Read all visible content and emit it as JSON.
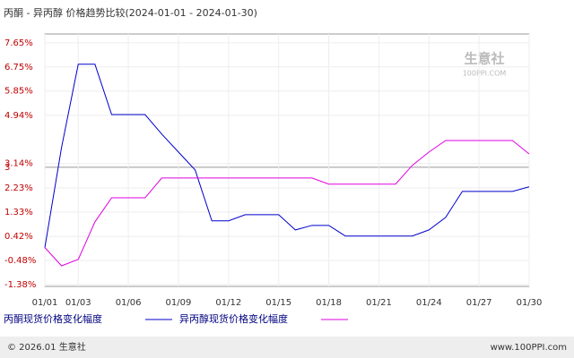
{
  "chart_data": {
    "type": "line",
    "title": "丙酮 - 异丙醇 价格趋势比较(2024-01-01 - 2024-01-30)",
    "categories": [
      "01/01",
      null,
      "01/03",
      null,
      null,
      "01/06",
      null,
      null,
      "01/09",
      null,
      null,
      "01/12",
      null,
      null,
      "01/15",
      null,
      null,
      "01/18",
      null,
      null,
      "01/21",
      null,
      null,
      "01/24",
      null,
      null,
      "01/27",
      null,
      null,
      "01/30"
    ],
    "series": [
      {
        "name": "丙酮现货价格变化幅度",
        "color": "#0000cc",
        "values": [
          0,
          3.74,
          6.85,
          6.85,
          4.97,
          4.97,
          4.97,
          4.24,
          3.57,
          2.9,
          1.0,
          1.0,
          1.23,
          1.23,
          1.23,
          0.66,
          0.83,
          0.83,
          0.43,
          0.43,
          0.43,
          0.43,
          0.43,
          0.66,
          1.13,
          2.1,
          2.1,
          2.1,
          2.1,
          2.27
        ]
      },
      {
        "name": "异丙醇现货价格变化幅度",
        "color": "#e000e0",
        "values": [
          0,
          -0.68,
          -0.44,
          0.96,
          1.86,
          1.86,
          1.86,
          2.6,
          2.6,
          2.6,
          2.6,
          2.6,
          2.6,
          2.6,
          2.6,
          2.6,
          2.6,
          2.37,
          2.37,
          2.37,
          2.37,
          2.37,
          3.07,
          3.57,
          4.0,
          4.0,
          4.0,
          4.0,
          4.0,
          3.5
        ]
      }
    ],
    "ylim": [
      -1.45,
      7.98
    ],
    "yticks": [
      {
        "value": 7.65,
        "label": "7.65%"
      },
      {
        "value": 6.75,
        "label": "6.75%"
      },
      {
        "value": 5.85,
        "label": "5.85%"
      },
      {
        "value": 4.94,
        "label": "4.94%"
      },
      3,
      {
        "value": 3.14,
        "label": "3.14%"
      },
      {
        "value": 2.23,
        "label": "2.23%"
      },
      {
        "value": 1.33,
        "label": "1.33%"
      },
      {
        "value": 0.42,
        "label": "0.42%"
      },
      {
        "value": -0.48,
        "label": "-0.48%"
      },
      {
        "value": -1.38,
        "label": "-1.38%"
      }
    ],
    "grid": true,
    "watermark": {
      "name": "生意社",
      "site": "100PPI.COM"
    },
    "footer": {
      "left": "© 2026.01 生意社",
      "right": "www.100PPI.com"
    }
  }
}
